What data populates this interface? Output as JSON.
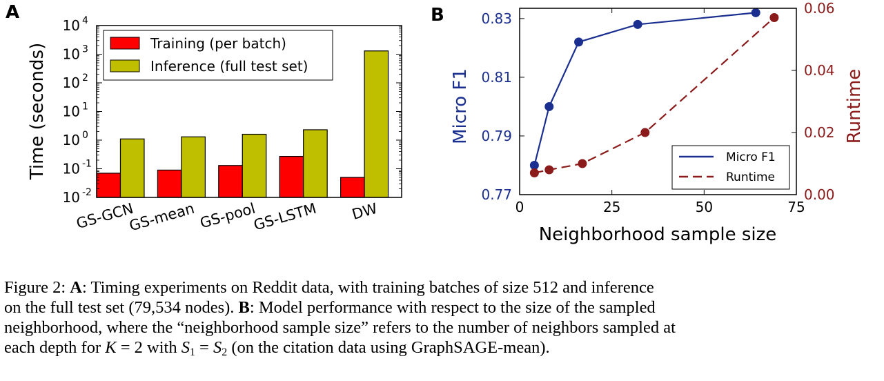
{
  "panels": {
    "a_label": "A",
    "b_label": "B"
  },
  "chart_data": [
    {
      "panel": "A",
      "type": "bar",
      "yscale": "log",
      "ylabel": "Time (seconds)",
      "ylim": [
        0.01,
        10000
      ],
      "yticks": [
        {
          "value": 0.01,
          "base": "10",
          "exp": "-2"
        },
        {
          "value": 0.1,
          "base": "10",
          "exp": "-1"
        },
        {
          "value": 1,
          "base": "10",
          "exp": "0"
        },
        {
          "value": 10,
          "base": "10",
          "exp": "1"
        },
        {
          "value": 100,
          "base": "10",
          "exp": "2"
        },
        {
          "value": 1000,
          "base": "10",
          "exp": "3"
        },
        {
          "value": 10000,
          "base": "10",
          "exp": "4"
        }
      ],
      "categories": [
        "GS-GCN",
        "GS-mean",
        "GS-pool",
        "GS-LSTM",
        "DW"
      ],
      "series": [
        {
          "name": "Training (per batch)",
          "color": "#ff0000",
          "values": [
            0.07,
            0.09,
            0.13,
            0.27,
            0.05
          ]
        },
        {
          "name": "Inference (full test set)",
          "color": "#bfbf00",
          "values": [
            1.1,
            1.3,
            1.6,
            2.3,
            1300
          ]
        }
      ],
      "legend": "top-left",
      "grid": false
    },
    {
      "panel": "B",
      "type": "line",
      "xlabel": "Neighborhood sample size",
      "xlim": [
        0,
        75
      ],
      "xticks": [
        "0",
        "25",
        "50",
        "75"
      ],
      "y_left": {
        "label": "Micro F1",
        "lim": [
          0.77,
          0.8335
        ],
        "ticks": [
          "0.77",
          "0.79",
          "0.81",
          "0.83"
        ],
        "color": "#1a2f8f"
      },
      "y_right": {
        "label": "Runtime",
        "lim": [
          0,
          0.06
        ],
        "ticks": [
          "0.00",
          "0.02",
          "0.04",
          "0.06"
        ],
        "color": "#8b1a1a"
      },
      "series": [
        {
          "name": "Micro F1",
          "axis": "left",
          "style": "solid",
          "color": "#1a2f8f",
          "x": [
            4,
            8,
            16,
            32,
            64
          ],
          "y": [
            0.78,
            0.8,
            0.822,
            0.828,
            0.832
          ]
        },
        {
          "name": "Runtime",
          "axis": "right",
          "style": "dashed",
          "color": "#8b1a1a",
          "x": [
            4,
            8,
            17,
            34,
            69
          ],
          "y": [
            0.007,
            0.008,
            0.01,
            0.02,
            0.057
          ]
        }
      ],
      "legend": "bottom-right",
      "grid": false
    }
  ],
  "caption": {
    "line1": {
      "fig": "Figure 2: ",
      "a": "A",
      "a_text": ": Timing experiments on Reddit data, with training batches of size 512 and inference"
    },
    "line2": {
      "text": "on the full test set (79,534 nodes). ",
      "b": "B",
      "b_text": ": Model performance with respect to the size of the sampled"
    },
    "line3": "neighborhood, where the “neighborhood sample size” refers to the number of neighbors sampled at",
    "line4": {
      "pre": "each depth for ",
      "k": "K",
      "eq1": " = 2 with ",
      "s": "S",
      "sub1": "1",
      "eq2": " = ",
      "sub2": "2",
      "post": " (on the citation data using GraphSAGE-mean)."
    }
  }
}
